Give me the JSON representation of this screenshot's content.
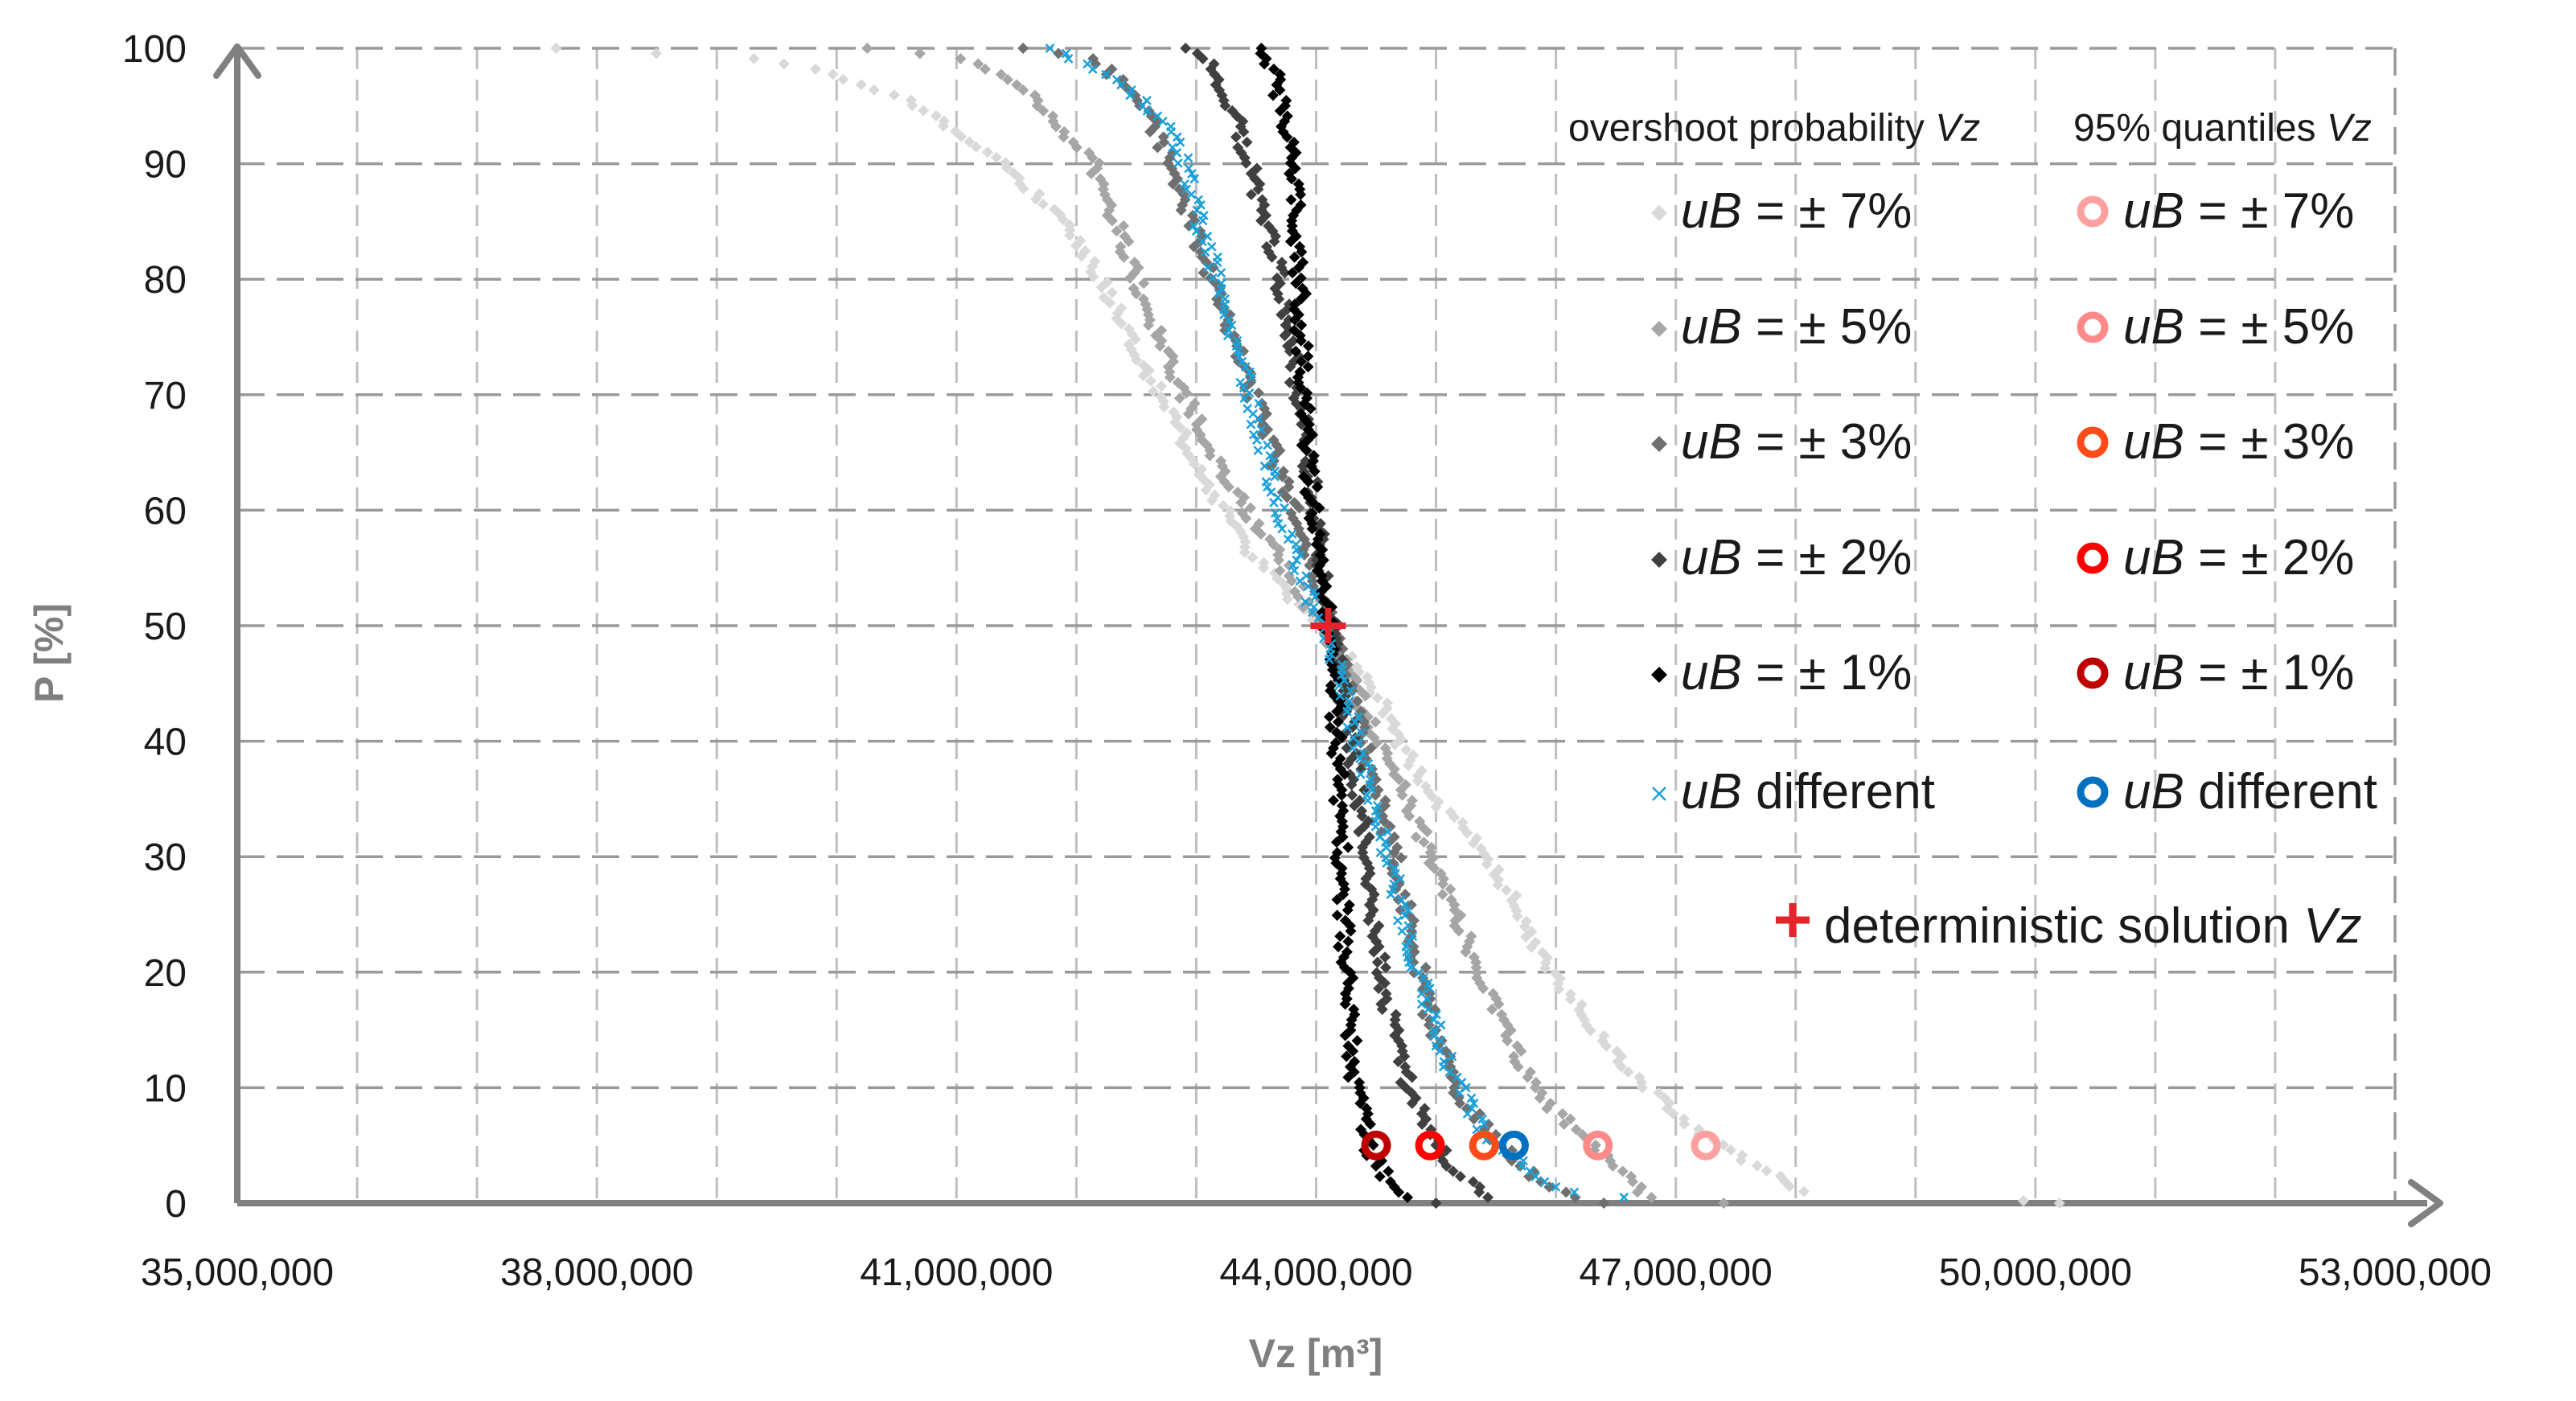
{
  "chart_data": {
    "type": "scatter",
    "title": "",
    "xlabel": "Vz [m³]",
    "ylabel": "P [%]",
    "xlim": [
      35000000,
      53000000
    ],
    "ylim": [
      0,
      100
    ],
    "xticks": [
      35000000,
      38000000,
      41000000,
      44000000,
      47000000,
      50000000,
      53000000
    ],
    "xtick_labels": [
      "35,000,000",
      "38,000,000",
      "41,000,000",
      "44,000,000",
      "47,000,000",
      "50,000,000",
      "53,000,000"
    ],
    "yticks": [
      0,
      10,
      20,
      30,
      40,
      50,
      60,
      70,
      80,
      90,
      100
    ],
    "ytick_labels": [
      "0",
      "10",
      "20",
      "30",
      "40",
      "50",
      "60",
      "70",
      "80",
      "90",
      "100"
    ],
    "vertical_gridlines": [
      36000000,
      37000000,
      38000000,
      39000000,
      40000000,
      41000000,
      42000000,
      43000000,
      44000000,
      45000000,
      46000000,
      47000000,
      48000000,
      49000000,
      50000000,
      51000000,
      52000000
    ],
    "grid": true,
    "legend": {
      "placement": "top-right",
      "header_overshoot": "overshoot probability",
      "header_quantiles": "95% quantiles",
      "header_var": "Vz",
      "deterministic_label": "deterministic solution",
      "deterministic_var": "Vz"
    },
    "overshoot_series": [
      {
        "name": "uB",
        "suffix": "= ± 7%",
        "color": "#d9d9d9",
        "marker": "diamond",
        "curve": [
          [
            37700000,
            100
          ],
          [
            39500000,
            99
          ],
          [
            40500000,
            96
          ],
          [
            41400000,
            90
          ],
          [
            41900000,
            85
          ],
          [
            42300000,
            78
          ],
          [
            42700000,
            70
          ],
          [
            43100000,
            62
          ],
          [
            43550000,
            55
          ],
          [
            44050000,
            50
          ],
          [
            44500000,
            44
          ],
          [
            44900000,
            36
          ],
          [
            45450000,
            30
          ],
          [
            45950000,
            20
          ],
          [
            46550000,
            12
          ],
          [
            47200000,
            6
          ],
          [
            47700000,
            3
          ],
          [
            48050000,
            1
          ]
        ],
        "outliers": [
          [
            49900000,
            0.2
          ],
          [
            50200000,
            0
          ]
        ]
      },
      {
        "name": "uB",
        "suffix": "= ± 5%",
        "color": "#a6a6a6",
        "marker": "diamond",
        "curve": [
          [
            40300000,
            100
          ],
          [
            41050000,
            99
          ],
          [
            41500000,
            97
          ],
          [
            42150000,
            90
          ],
          [
            42500000,
            80
          ],
          [
            42900000,
            70
          ],
          [
            43300000,
            62
          ],
          [
            43800000,
            54
          ],
          [
            44050000,
            50
          ],
          [
            44350000,
            44
          ],
          [
            44700000,
            36
          ],
          [
            45050000,
            28
          ],
          [
            45450000,
            18
          ],
          [
            45800000,
            10
          ],
          [
            46200000,
            6
          ],
          [
            46500000,
            3
          ],
          [
            46750000,
            0.5
          ]
        ],
        "outliers": [
          [
            47400000,
            0
          ]
        ]
      },
      {
        "name": "uB",
        "suffix": "= ± 3%",
        "color": "#6f6f6f",
        "marker": "diamond",
        "curve": [
          [
            41550000,
            100
          ],
          [
            42150000,
            99
          ],
          [
            42500000,
            96
          ],
          [
            42800000,
            90
          ],
          [
            43050000,
            82
          ],
          [
            43400000,
            72
          ],
          [
            43750000,
            62
          ],
          [
            44000000,
            54
          ],
          [
            44120000,
            50
          ],
          [
            44350000,
            42
          ],
          [
            44550000,
            34
          ],
          [
            44750000,
            26
          ],
          [
            44950000,
            16
          ],
          [
            45200000,
            9
          ],
          [
            45550000,
            5
          ],
          [
            45850000,
            2
          ],
          [
            46150000,
            0.5
          ]
        ],
        "outliers": [
          [
            46400000,
            0
          ]
        ]
      },
      {
        "name": "uB",
        "suffix": "= ± 2%",
        "color": "#404040",
        "marker": "diamond",
        "curve": [
          [
            42900000,
            100
          ],
          [
            43100000,
            99
          ],
          [
            43300000,
            95
          ],
          [
            43500000,
            88
          ],
          [
            43700000,
            80
          ],
          [
            43850000,
            70
          ],
          [
            44000000,
            60
          ],
          [
            44130000,
            50
          ],
          [
            44300000,
            40
          ],
          [
            44420000,
            30
          ],
          [
            44550000,
            20
          ],
          [
            44700000,
            12
          ],
          [
            44900000,
            7
          ],
          [
            45150000,
            3
          ],
          [
            45400000,
            0.5
          ]
        ],
        "outliers": [
          [
            45000000,
            0
          ]
        ]
      },
      {
        "name": "uB",
        "suffix": "= ± 1%",
        "color": "#000000",
        "marker": "diamond",
        "curve": [
          [
            43550000,
            100
          ],
          [
            43650000,
            98
          ],
          [
            43780000,
            92
          ],
          [
            43830000,
            85
          ],
          [
            43880000,
            75
          ],
          [
            43930000,
            65
          ],
          [
            44030000,
            55
          ],
          [
            44100000,
            50
          ],
          [
            44170000,
            42
          ],
          [
            44200000,
            34
          ],
          [
            44230000,
            24
          ],
          [
            44270000,
            16
          ],
          [
            44330000,
            10
          ],
          [
            44430000,
            5
          ],
          [
            44600000,
            2
          ],
          [
            44800000,
            0.5
          ]
        ],
        "outliers": []
      },
      {
        "name": "uB",
        "suffix": "different",
        "color": "#1ba1d9",
        "marker": "x",
        "curve": [
          [
            41800000,
            100
          ],
          [
            42000000,
            99
          ],
          [
            42400000,
            97
          ],
          [
            42750000,
            93
          ],
          [
            42900000,
            90
          ],
          [
            43050000,
            84
          ],
          [
            43250000,
            78
          ],
          [
            43450000,
            70
          ],
          [
            43650000,
            62
          ],
          [
            43850000,
            55
          ],
          [
            44050000,
            50
          ],
          [
            44250000,
            44
          ],
          [
            44450000,
            36
          ],
          [
            44650000,
            28
          ],
          [
            44850000,
            20
          ],
          [
            45100000,
            12
          ],
          [
            45400000,
            6
          ],
          [
            45750000,
            3
          ],
          [
            46050000,
            1
          ],
          [
            46550000,
            0.5
          ]
        ],
        "outliers": []
      }
    ],
    "quantile_points": [
      {
        "name": "uB",
        "suffix": "= ± 7%",
        "x": 47250000,
        "y": 5,
        "color": "#ffa0a0"
      },
      {
        "name": "uB",
        "suffix": "= ± 5%",
        "x": 46350000,
        "y": 5,
        "color": "#ff8a8a"
      },
      {
        "name": "uB",
        "suffix": "= ± 3%",
        "x": 45400000,
        "y": 5,
        "color": "#ff4a1a"
      },
      {
        "name": "uB",
        "suffix": "= ± 2%",
        "x": 44950000,
        "y": 5,
        "color": "#ff0000"
      },
      {
        "name": "uB",
        "suffix": "= ± 1%",
        "x": 44500000,
        "y": 5,
        "color": "#c00000"
      },
      {
        "name": "uB",
        "suffix": "different",
        "x": 45650000,
        "y": 5,
        "color": "#0070c0"
      }
    ],
    "deterministic_point": {
      "x": 44100000,
      "y": 50,
      "color": "#e3242b"
    }
  }
}
